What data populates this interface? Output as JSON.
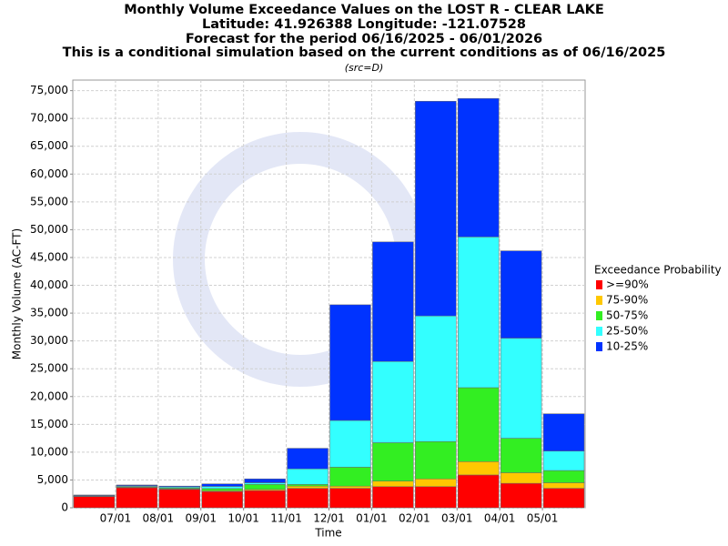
{
  "chart_data": {
    "type": "stacked_bar",
    "title": "Monthly Volume Exceedance Values on the LOST R - CLEAR LAKE",
    "subtitles": [
      "Latitude: 41.926388 Longitude: -121.07528",
      "Forecast for the period 06/16/2025 - 06/01/2026",
      "This is a conditional simulation based on the current conditions as of 06/16/2025"
    ],
    "source_note": "(src=D)",
    "x_label": "Time",
    "y_label": "Monthly Volume (AC-FT)",
    "legend_title": "Exceedance Probability",
    "categories": [
      null,
      "07/01",
      "08/01",
      "09/01",
      "10/01",
      "11/01",
      "12/01",
      "01/01",
      "02/01",
      "03/01",
      "04/01",
      "05/01"
    ],
    "series": [
      {
        "name": ">=90%",
        "color": "#ff0000",
        "values": [
          2000,
          3600,
          3300,
          2900,
          3100,
          3500,
          3500,
          3800,
          3800,
          5900,
          4400,
          3500
        ]
      },
      {
        "name": "75-90%",
        "color": "#ffc800",
        "values": [
          50,
          100,
          100,
          150,
          200,
          400,
          400,
          1000,
          1400,
          2400,
          1900,
          1000
        ]
      },
      {
        "name": "50-75%",
        "color": "#33ee22",
        "values": [
          50,
          100,
          150,
          400,
          900,
          300,
          3400,
          6900,
          6700,
          13300,
          6200,
          2200
        ]
      },
      {
        "name": "25-50%",
        "color": "#33ffff",
        "values": [
          100,
          150,
          200,
          400,
          300,
          2800,
          8400,
          14600,
          22600,
          27100,
          18000,
          3500
        ]
      },
      {
        "name": "10-25%",
        "color": "#0033ff",
        "values": [
          100,
          150,
          150,
          450,
          700,
          3700,
          20800,
          21500,
          38600,
          24900,
          15700,
          6700
        ]
      }
    ],
    "ylim": [
      0,
      76900
    ],
    "yticks": [
      0,
      {
        "value": 5000,
        "label": "5,000"
      },
      {
        "value": 10000,
        "label": "10,000"
      },
      {
        "value": 15000,
        "label": "15,000"
      },
      {
        "value": 20000,
        "label": "20,000"
      },
      {
        "value": 25000,
        "label": "25,000"
      },
      {
        "value": 30000,
        "label": "30,000"
      },
      {
        "value": 35000,
        "label": "35,000"
      },
      {
        "value": 40000,
        "label": "40,000"
      },
      {
        "value": 45000,
        "label": "45,000"
      },
      {
        "value": 50000,
        "label": "50,000"
      },
      {
        "value": 55000,
        "label": "55,000"
      },
      {
        "value": 60000,
        "label": "60,000"
      },
      {
        "value": 65000,
        "label": "65,000"
      },
      {
        "value": 70000,
        "label": "70,000"
      },
      {
        "value": 75000,
        "label": "75,000"
      }
    ],
    "grid": true
  }
}
